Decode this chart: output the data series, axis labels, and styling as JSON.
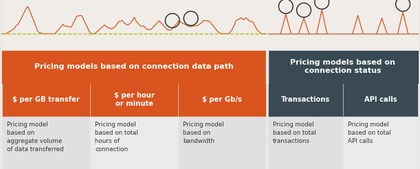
{
  "fig_width": 6.11,
  "fig_height": 2.46,
  "dpi": 100,
  "background_color": "#e8e8e8",
  "waveform_bg": "#f0ede8",
  "orange": "#d9541e",
  "dark": "#3a4a54",
  "light_gray": "#e0e0e0",
  "mid_gray": "#ebebeb",
  "white": "#ffffff",
  "header1_text": "Pricing models based on connection data path",
  "header2_text": "Pricing models based on\nconnection status",
  "col_headers": [
    "$ per GB transfer",
    "$ per hour\nor minute",
    "$ per Gb/s",
    "Transactions",
    "API calls"
  ],
  "col_bodies": [
    "Pricing model\nbased on\naggregate volume\nof data transferred",
    "Pricing model\nbased on total\nhours of\nconnection",
    "Pricing model\nbased on\nbandwidth",
    "Pricing model\nbased on total\ntransactions",
    "Pricing model\nbased on total\nAPI calls"
  ],
  "col_header_colors": [
    "#d9541e",
    "#d9541e",
    "#d9541e",
    "#3a4a54",
    "#3a4a54"
  ],
  "col_body_colors": [
    "#e0e0e0",
    "#ebebeb",
    "#e0e0e0",
    "#e0e0e0",
    "#ebebeb"
  ],
  "waveform_color": "#d9541e",
  "baseline_color": "#b8b800",
  "circle_color": "#222222",
  "text_color": "#333333"
}
